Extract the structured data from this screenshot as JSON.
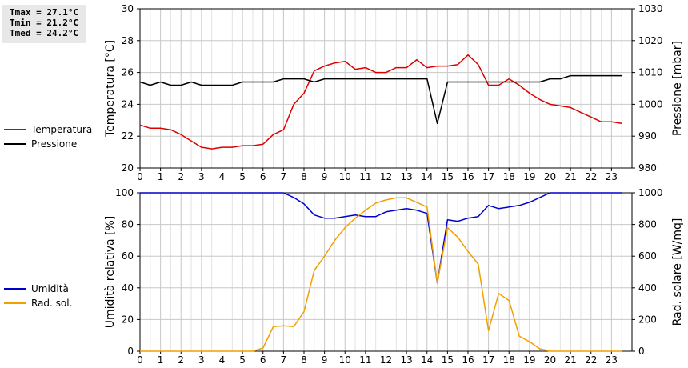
{
  "stats": {
    "tmax": "Tmax = 27.1°C",
    "tmin": "Tmin = 21.2°C",
    "tmed": "Tmed = 24.2°C"
  },
  "chart_data": [
    {
      "type": "line",
      "x": [
        0,
        0.5,
        1,
        1.5,
        2,
        2.5,
        3,
        3.5,
        4,
        4.5,
        5,
        5.5,
        6,
        6.5,
        7,
        7.5,
        8,
        8.5,
        9,
        9.5,
        10,
        10.5,
        11,
        11.5,
        12,
        12.5,
        13,
        13.5,
        14,
        14.5,
        15,
        15.5,
        16,
        16.5,
        17,
        17.5,
        18,
        18.5,
        19,
        19.5,
        20,
        20.5,
        21,
        21.5,
        22,
        22.5,
        23,
        23.5
      ],
      "xlim": [
        0,
        24
      ],
      "xticks": [
        0,
        1,
        2,
        3,
        4,
        5,
        6,
        7,
        8,
        9,
        10,
        11,
        12,
        13,
        14,
        15,
        16,
        17,
        18,
        19,
        20,
        21,
        22,
        23
      ],
      "ylabel": "Temperatura [°C]",
      "ylim": [
        20,
        30
      ],
      "yticks": [
        20,
        22,
        24,
        26,
        28,
        30
      ],
      "y2label": "Pressione [mbar]",
      "y2lim": [
        980,
        1030
      ],
      "y2ticks": [
        980,
        990,
        1000,
        1010,
        1020,
        1030
      ],
      "legend": "left",
      "series": [
        {
          "name": "Temperatura",
          "axis": "left",
          "color": "#dd0000",
          "values": [
            22.7,
            22.5,
            22.5,
            22.4,
            22.1,
            21.7,
            21.3,
            21.2,
            21.3,
            21.3,
            21.4,
            21.4,
            21.5,
            22.1,
            22.4,
            24.0,
            24.7,
            26.1,
            26.4,
            26.6,
            26.7,
            26.2,
            26.3,
            26.0,
            26.0,
            26.3,
            26.3,
            26.8,
            26.3,
            26.4,
            26.4,
            26.5,
            27.1,
            26.5,
            25.2,
            25.2,
            25.6,
            25.2,
            24.7,
            24.3,
            24.0,
            23.9,
            23.8,
            23.5,
            23.2,
            22.9,
            22.9,
            22.8
          ]
        },
        {
          "name": "Pressione",
          "axis": "right",
          "color": "#000000",
          "values": [
            1007,
            1006,
            1007,
            1006,
            1006,
            1007,
            1006,
            1006,
            1006,
            1006,
            1007,
            1007,
            1007,
            1007,
            1008,
            1008,
            1008,
            1007,
            1008,
            1008,
            1008,
            1008,
            1008,
            1008,
            1008,
            1008,
            1008,
            1008,
            1008,
            994,
            1007,
            1007,
            1007,
            1007,
            1007,
            1007,
            1007,
            1007,
            1007,
            1007,
            1008,
            1008,
            1009,
            1009,
            1009,
            1009,
            1009,
            1009
          ]
        }
      ]
    },
    {
      "type": "line",
      "x": [
        0,
        0.5,
        1,
        1.5,
        2,
        2.5,
        3,
        3.5,
        4,
        4.5,
        5,
        5.5,
        6,
        6.5,
        7,
        7.5,
        8,
        8.5,
        9,
        9.5,
        10,
        10.5,
        11,
        11.5,
        12,
        12.5,
        13,
        13.5,
        14,
        14.5,
        15,
        15.5,
        16,
        16.5,
        17,
        17.5,
        18,
        18.5,
        19,
        19.5,
        20,
        20.5,
        21,
        21.5,
        22,
        22.5,
        23,
        23.5
      ],
      "xlim": [
        0,
        24
      ],
      "xticks": [
        0,
        1,
        2,
        3,
        4,
        5,
        6,
        7,
        8,
        9,
        10,
        11,
        12,
        13,
        14,
        15,
        16,
        17,
        18,
        19,
        20,
        21,
        22,
        23
      ],
      "ylabel": "Umidità relativa [%]",
      "ylim": [
        0,
        100
      ],
      "yticks": [
        0,
        20,
        40,
        60,
        80,
        100
      ],
      "y2label": "Rad. solare [W/mq]",
      "y2lim": [
        0,
        1000
      ],
      "y2ticks": [
        0,
        200,
        400,
        600,
        800,
        1000
      ],
      "legend": "left",
      "series": [
        {
          "name": "Umidità",
          "axis": "left",
          "color": "#0000cc",
          "values": [
            100,
            100,
            100,
            100,
            100,
            100,
            100,
            100,
            100,
            100,
            100,
            100,
            100,
            100,
            100,
            97,
            93,
            86,
            84,
            84,
            85,
            86,
            85,
            85,
            88,
            89,
            90,
            89,
            87,
            43,
            83,
            82,
            84,
            85,
            92,
            90,
            91,
            92,
            94,
            97,
            100,
            100,
            100,
            100,
            100,
            100,
            100,
            100
          ]
        },
        {
          "name": "Rad. sol.",
          "axis": "right",
          "color": "#f0a000",
          "values": [
            0,
            0,
            0,
            0,
            0,
            0,
            0,
            0,
            0,
            0,
            0,
            0,
            20,
            155,
            160,
            155,
            250,
            510,
            600,
            700,
            780,
            840,
            890,
            935,
            955,
            968,
            968,
            940,
            910,
            430,
            780,
            720,
            630,
            550,
            130,
            365,
            320,
            95,
            60,
            15,
            0,
            0,
            0,
            0,
            0,
            0,
            0,
            0
          ]
        }
      ]
    }
  ]
}
